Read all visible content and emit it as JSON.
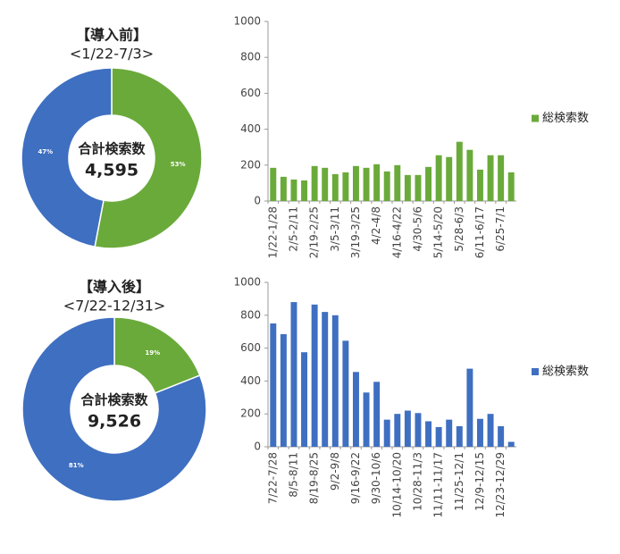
{
  "chart_data": [
    {
      "type": "pie",
      "title": "【導入前】",
      "subtitle": "<1/22-7/3>",
      "center_text": [
        "合計検索数",
        "4,595"
      ],
      "values": [
        53,
        47
      ],
      "value_labels": [
        "53%",
        "47%"
      ],
      "colors": [
        "#6aaa3a",
        "#3f6fc1"
      ],
      "donut": true
    },
    {
      "type": "bar",
      "categories": [
        "1/22-1/28",
        null,
        "2/5-2/11",
        null,
        "2/19-2/25",
        null,
        "3/5-3/11",
        null,
        "3/19-3/25",
        null,
        "4/2-4/8",
        null,
        "4/16-4/22",
        null,
        "4/30-5/6",
        null,
        "5/14-5/20",
        null,
        "5/28-6/3",
        null,
        "6/11-6/17",
        null,
        "6/25-7/1",
        null
      ],
      "series": [
        {
          "name": "総検索数",
          "color": "#6aaa3a",
          "values": [
            185,
            135,
            120,
            115,
            195,
            185,
            150,
            160,
            195,
            185,
            205,
            165,
            200,
            145,
            145,
            190,
            255,
            245,
            330,
            285,
            175,
            255,
            255,
            160
          ]
        }
      ],
      "ylim": [
        0,
        1000
      ],
      "yticks": [
        0,
        200,
        400,
        600,
        800,
        1000
      ],
      "legend": "right"
    },
    {
      "type": "pie",
      "title": "【導入後】",
      "subtitle": "<7/22-12/31>",
      "center_text": [
        "合計検索数",
        "9,526"
      ],
      "values": [
        19,
        81
      ],
      "value_labels": [
        "19%",
        "81%"
      ],
      "colors": [
        "#6aaa3a",
        "#3f6fc1"
      ],
      "donut": true
    },
    {
      "type": "bar",
      "categories": [
        "7/22-7/28",
        null,
        "8/5-8/11",
        null,
        "8/19-8/25",
        null,
        "9/2-9/8",
        null,
        "9/16-9/22",
        null,
        "9/30-10/6",
        null,
        "10/14-10/20",
        null,
        "10/28-11/3",
        null,
        "11/11-11/17",
        null,
        "11/25-12/1",
        null,
        "12/9-12/15",
        null,
        "12/23-12/29",
        null
      ],
      "series": [
        {
          "name": "総検索数",
          "color": "#3f6fc1",
          "values": [
            750,
            685,
            880,
            575,
            865,
            820,
            800,
            645,
            455,
            330,
            395,
            165,
            200,
            220,
            205,
            155,
            120,
            165,
            125,
            475,
            170,
            200,
            125,
            30
          ]
        }
      ],
      "ylim": [
        0,
        1000
      ],
      "yticks": [
        0,
        200,
        400,
        600,
        800,
        1000
      ],
      "legend": "right"
    }
  ]
}
